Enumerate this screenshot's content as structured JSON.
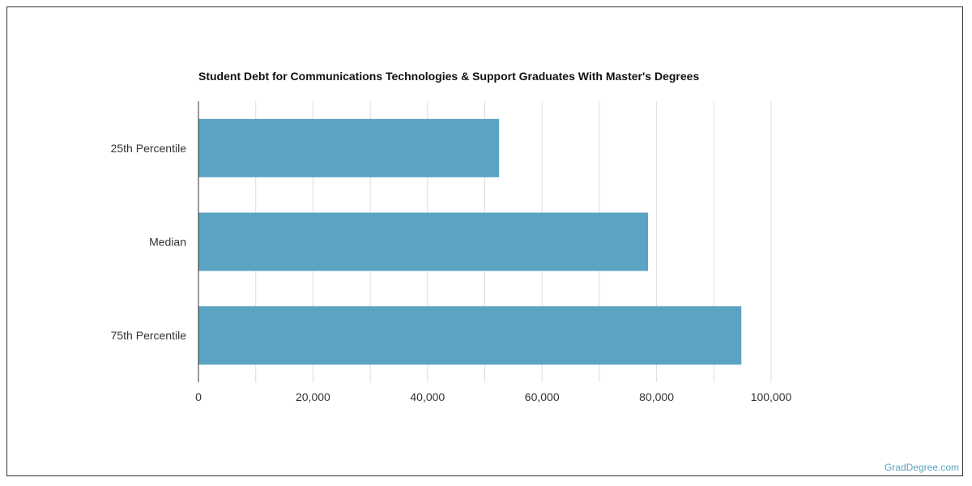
{
  "chart_data": {
    "type": "bar",
    "orientation": "horizontal",
    "title": "Student Debt for Communications Technologies & Support Graduates With Master's Degrees",
    "categories": [
      "25th Percentile",
      "Median",
      "75th Percentile"
    ],
    "values": [
      52500,
      78500,
      94800
    ],
    "xlim": [
      0,
      100000
    ],
    "x_ticks": [
      "0",
      "20,000",
      "40,000",
      "60,000",
      "80,000",
      "100,000"
    ],
    "grid": true,
    "bar_color": "#5ba3c2",
    "grid_color": "#dddddd"
  },
  "watermark": "GradDegree.com"
}
